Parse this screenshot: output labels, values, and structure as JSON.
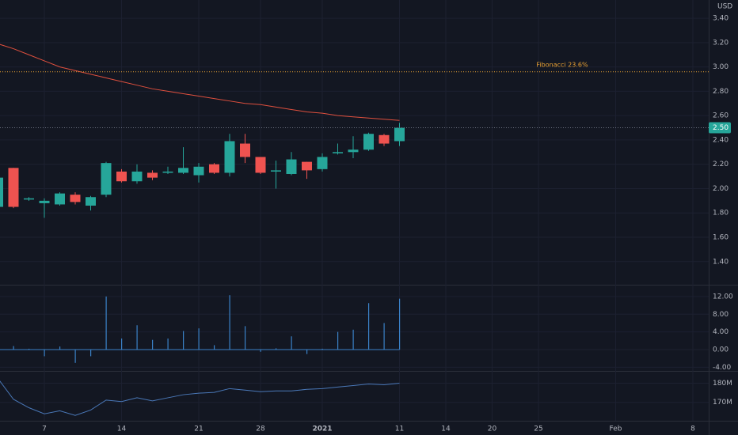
{
  "chart_data": [
    {
      "type": "candlestick",
      "currency": "USD",
      "categories": [
        null,
        null,
        null,
        "7",
        null,
        null,
        null,
        null,
        "14",
        null,
        null,
        null,
        null,
        "21",
        null,
        null,
        null,
        "28",
        null,
        null,
        null,
        "2021",
        null,
        null,
        null,
        null,
        "11",
        null,
        null,
        "14",
        null,
        null,
        "20",
        null,
        null,
        "25",
        null,
        null,
        null,
        null,
        "Feb",
        null,
        null,
        null,
        null,
        "8"
      ],
      "open": [
        1.85,
        2.17,
        1.91,
        1.88,
        1.87,
        1.95,
        1.86,
        1.95,
        2.14,
        2.06,
        2.13,
        2.13,
        2.13,
        2.11,
        2.2,
        2.13,
        2.37,
        2.26,
        2.14,
        2.12,
        2.22,
        2.16,
        2.29,
        2.3,
        2.32,
        2.44,
        2.39,
        null,
        null,
        null,
        null,
        null,
        null,
        null,
        null,
        null,
        null,
        null,
        null,
        null,
        null,
        null,
        null,
        null,
        null,
        null
      ],
      "high": [
        2.1,
        2.17,
        1.93,
        1.92,
        1.97,
        1.97,
        1.94,
        2.22,
        2.16,
        2.2,
        2.15,
        2.18,
        2.34,
        2.21,
        2.21,
        2.45,
        2.45,
        2.26,
        2.23,
        2.3,
        2.22,
        2.29,
        2.37,
        2.43,
        2.46,
        2.45,
        2.54,
        null,
        null,
        null,
        null,
        null,
        null,
        null,
        null,
        null,
        null,
        null,
        null,
        null,
        null,
        null,
        null,
        null,
        null,
        null
      ],
      "low": [
        1.83,
        1.84,
        1.9,
        1.76,
        1.86,
        1.87,
        1.82,
        1.93,
        2.05,
        2.04,
        2.07,
        2.12,
        2.12,
        2.05,
        2.12,
        2.1,
        2.21,
        2.12,
        2.0,
        2.11,
        2.08,
        2.14,
        2.28,
        2.25,
        2.31,
        2.35,
        2.35,
        null,
        null,
        null,
        null,
        null,
        null,
        null,
        null,
        null,
        null,
        null,
        null,
        null,
        null,
        null,
        null,
        null,
        null,
        null
      ],
      "close": [
        2.09,
        1.85,
        1.92,
        1.9,
        1.96,
        1.89,
        1.93,
        2.21,
        2.06,
        2.14,
        2.09,
        2.14,
        2.17,
        2.18,
        2.13,
        2.39,
        2.26,
        2.13,
        2.15,
        2.24,
        2.15,
        2.26,
        2.3,
        2.32,
        2.45,
        2.37,
        2.5,
        null,
        null,
        null,
        null,
        null,
        null,
        null,
        null,
        null,
        null,
        null,
        null,
        null,
        null,
        null,
        null,
        null,
        null,
        null
      ],
      "up_color": "#26a69a",
      "down_color": "#ef5350",
      "ma": {
        "color": "#e0503e",
        "values": [
          3.19,
          3.15,
          3.1,
          3.05,
          3.0,
          2.97,
          2.94,
          2.91,
          2.88,
          2.85,
          2.82,
          2.8,
          2.78,
          2.76,
          2.74,
          2.72,
          2.7,
          2.69,
          2.67,
          2.65,
          2.63,
          2.62,
          2.6,
          2.59,
          2.58,
          2.57,
          2.56,
          null,
          null,
          null,
          null,
          null,
          null,
          null,
          null,
          null,
          null,
          null,
          null,
          null,
          null,
          null,
          null,
          null,
          null,
          null
        ]
      },
      "fibonacci": {
        "label": "Fibonacci 23.6%",
        "value": 2.96,
        "color": "#e8a032"
      },
      "last_price": {
        "value": 2.5,
        "label": "2.50"
      },
      "ylim": [
        1.21,
        3.55
      ],
      "yticks": [
        {
          "value": 3.4,
          "label": "3.40"
        },
        {
          "value": 3.2,
          "label": "3.20"
        },
        {
          "value": 3,
          "label": "3.00"
        },
        {
          "value": 2.8,
          "label": "2.80"
        },
        {
          "value": 2.6,
          "label": "2.60"
        },
        {
          "value": 2.4,
          "label": "2.40"
        },
        {
          "value": 2.2,
          "label": "2.20"
        },
        {
          "value": 2,
          "label": "2.00"
        },
        {
          "value": 1.8,
          "label": "1.80"
        },
        {
          "value": 1.6,
          "label": "1.60"
        },
        {
          "value": 1.4,
          "label": "1.40"
        }
      ],
      "grid": true
    },
    {
      "type": "bar",
      "color": "#3b82c8",
      "values": [
        0.5,
        0.8,
        0.2,
        -1.5,
        0.7,
        -3,
        -1.5,
        12,
        2.5,
        5.5,
        2.2,
        2.5,
        4.2,
        4.8,
        1.0,
        12.3,
        5.3,
        -0.5,
        0.3,
        3.0,
        -1.0,
        0.2,
        4.0,
        4.5,
        10.5,
        6.0,
        11.5,
        null,
        null,
        null,
        null,
        null,
        null,
        null,
        null,
        null,
        null,
        null,
        null,
        null,
        null,
        null,
        null,
        null,
        null,
        null
      ],
      "ylim": [
        -4.64,
        14.3
      ],
      "yticks": [
        {
          "value": 12,
          "label": "12.00"
        },
        {
          "value": 8,
          "label": "8.00"
        },
        {
          "value": 4,
          "label": "4.00"
        },
        {
          "value": 0,
          "label": "0.00"
        },
        {
          "value": -4,
          "label": "-4.00"
        }
      ]
    },
    {
      "type": "line",
      "color": "#4a78b8",
      "values": [
        182.4,
        171.6,
        167.2,
        164,
        165.6,
        163.2,
        166,
        171.2,
        170.4,
        172.4,
        170.8,
        172.4,
        174,
        174.8,
        175.2,
        177.2,
        176.4,
        175.6,
        176,
        176,
        176.8,
        177.2,
        178,
        178.8,
        179.6,
        179.2,
        180,
        null,
        null,
        null,
        null,
        null,
        null,
        null,
        null,
        null,
        null,
        null,
        null,
        null,
        null,
        null,
        null,
        null,
        null,
        null
      ],
      "ylim": [
        160.8,
        185.6
      ],
      "yticks": [
        {
          "value": 180,
          "label": "180M"
        },
        {
          "value": 170,
          "label": "170M"
        }
      ]
    }
  ]
}
